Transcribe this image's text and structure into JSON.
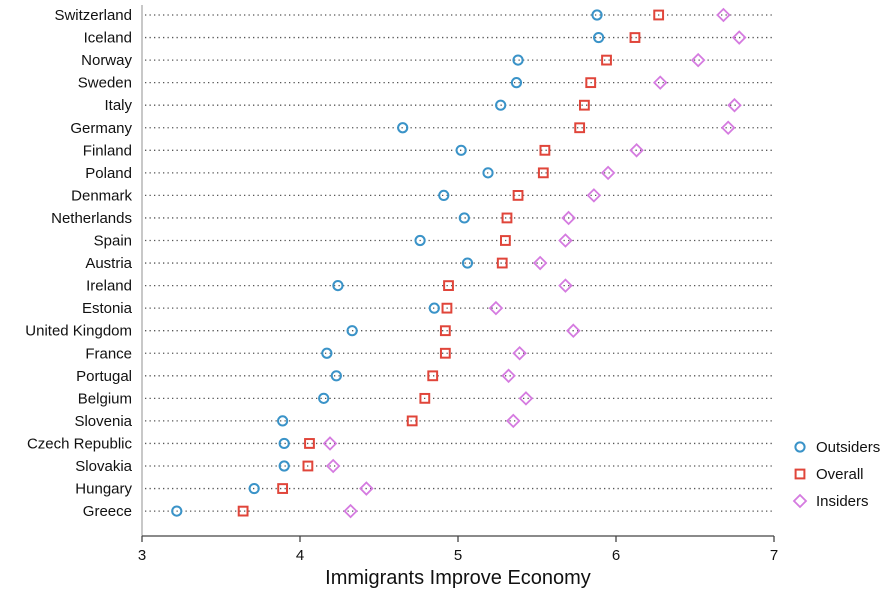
{
  "chart_data": {
    "type": "scatter",
    "title": "",
    "xlabel": "Immigrants Improve Economy",
    "ylabel": "",
    "xlim": [
      3,
      7
    ],
    "xticks": [
      3,
      4,
      5,
      6,
      7
    ],
    "grid": "dotted horizontal guide lines per country",
    "legend_position": "right-bottom",
    "categories": [
      "Switzerland",
      "Iceland",
      "Norway",
      "Sweden",
      "Italy",
      "Germany",
      "Finland",
      "Poland",
      "Denmark",
      "Netherlands",
      "Spain",
      "Austria",
      "Ireland",
      "Estonia",
      "United Kingdom",
      "France",
      "Portugal",
      "Belgium",
      "Slovenia",
      "Czech Republic",
      "Slovakia",
      "Hungary",
      "Greece"
    ],
    "series": [
      {
        "name": "Outsiders",
        "marker": "circle",
        "color": "#3a93c8",
        "values": [
          5.88,
          5.89,
          5.38,
          5.37,
          5.27,
          4.65,
          5.02,
          5.19,
          4.91,
          5.04,
          4.76,
          5.06,
          4.24,
          4.85,
          4.33,
          4.17,
          4.23,
          4.15,
          3.89,
          3.9,
          3.9,
          3.71,
          3.22
        ]
      },
      {
        "name": "Overall",
        "marker": "square",
        "color": "#e0453a",
        "values": [
          6.27,
          6.12,
          5.94,
          5.84,
          5.8,
          5.77,
          5.55,
          5.54,
          5.38,
          5.31,
          5.3,
          5.28,
          4.94,
          4.93,
          4.92,
          4.92,
          4.84,
          4.79,
          4.71,
          4.06,
          4.05,
          3.89,
          3.64
        ]
      },
      {
        "name": "Insiders",
        "marker": "diamond",
        "color": "#d57be0",
        "values": [
          6.68,
          6.78,
          6.52,
          6.28,
          6.75,
          6.71,
          6.13,
          5.95,
          5.86,
          5.7,
          5.68,
          5.52,
          5.68,
          5.24,
          5.73,
          5.39,
          5.32,
          5.43,
          5.35,
          4.19,
          4.21,
          4.42,
          4.32
        ]
      }
    ]
  }
}
